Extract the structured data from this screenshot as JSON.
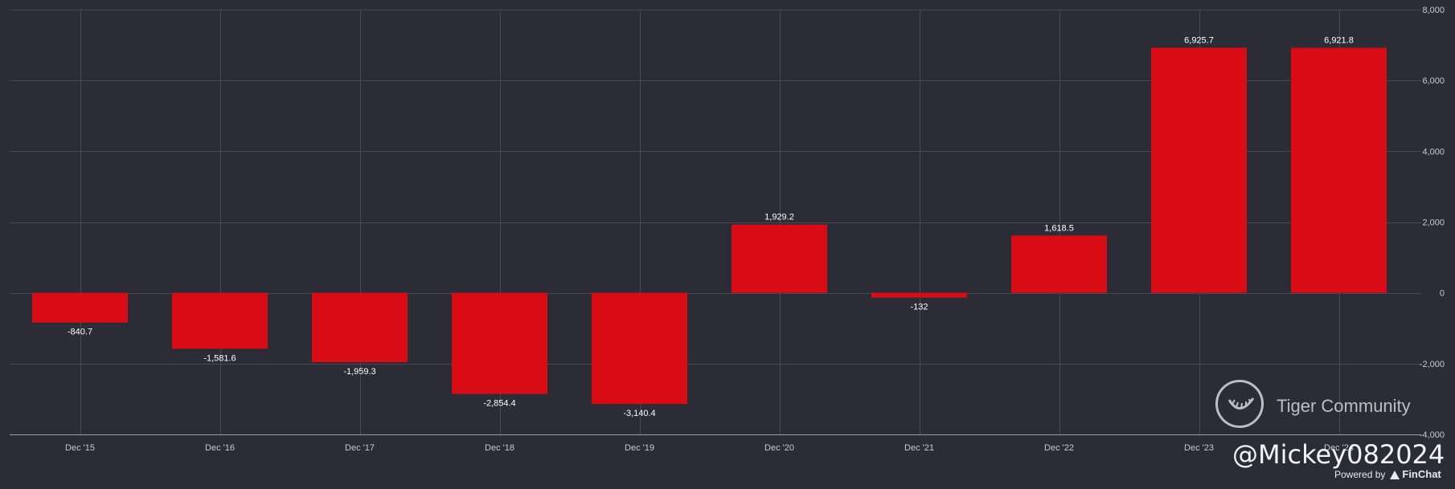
{
  "chart_data": {
    "type": "bar",
    "categories": [
      "Dec '15",
      "Dec '16",
      "Dec '17",
      "Dec '18",
      "Dec '19",
      "Dec '20",
      "Dec '21",
      "Dec '22",
      "Dec '23",
      "Dec '24"
    ],
    "values": [
      -840.7,
      -1581.6,
      -1959.3,
      -2854.4,
      -3140.4,
      1929.2,
      -132,
      1618.5,
      6925.7,
      6921.8
    ],
    "value_labels": [
      "-840.7",
      "-1,581.6",
      "-1,959.3",
      "-2,854.4",
      "-3,140.4",
      "1,929.2",
      "-132",
      "1,618.5",
      "6,925.7",
      "6,921.8"
    ],
    "ylim": [
      -4000,
      8000
    ],
    "yticks": [
      8000,
      6000,
      4000,
      2000,
      0,
      -2000,
      -4000
    ],
    "ytick_labels": [
      "8,000",
      "6,000",
      "4,000",
      "2,000",
      "0",
      "-2,000",
      "-4,000"
    ],
    "y_axis_position": "right",
    "grid": true,
    "bar_color": "#d90b15",
    "background_color": "#2b2c35"
  },
  "watermark": {
    "text": "Tiger Community",
    "handle": "@Mickey082024",
    "powered_by": "Powered by",
    "brand": "FinChat",
    "logo_icon": "tiger-logo-icon"
  }
}
